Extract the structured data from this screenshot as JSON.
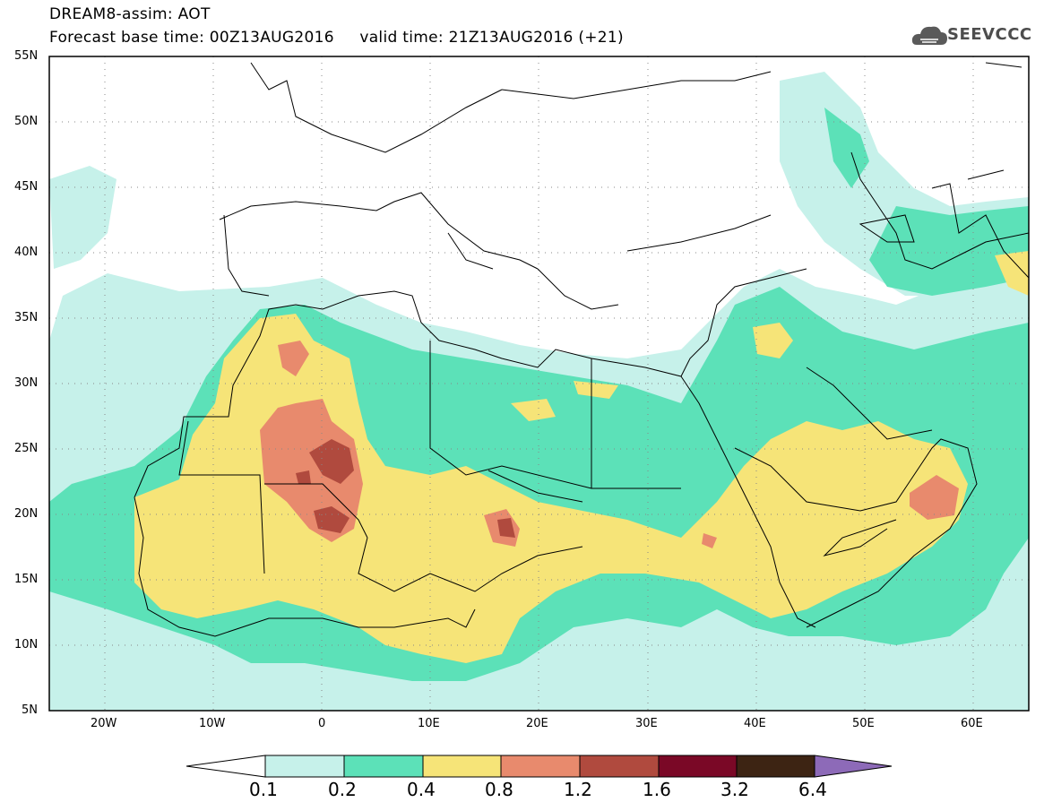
{
  "header": {
    "model_line": "DREAM8-assim: AOT",
    "time_line": "Forecast base time: 00Z13AUG2016     valid time: 21Z13AUG2016 (+21)",
    "logo_text": "SEEVCCC"
  },
  "map": {
    "lat_labels": [
      "55N",
      "50N",
      "45N",
      "40N",
      "35N",
      "30N",
      "25N",
      "20N",
      "15N",
      "10N",
      "5N"
    ],
    "lon_labels": [
      "20W",
      "10W",
      "0",
      "10E",
      "20E",
      "30E",
      "40E",
      "50E",
      "60E"
    ],
    "lon_range": [
      -25,
      65
    ],
    "lat_range": [
      5,
      55
    ],
    "gridlines": true
  },
  "colorbar": {
    "labels": [
      "0.1",
      "0.2",
      "0.4",
      "0.8",
      "1.2",
      "1.6",
      "3.2",
      "6.4"
    ],
    "colors": [
      "#ffffff",
      "#c6f1ea",
      "#5ce1b8",
      "#f6e478",
      "#e88a6d",
      "#b04a3e",
      "#7a0826",
      "#3d2413",
      "#8d6ab8"
    ]
  }
}
